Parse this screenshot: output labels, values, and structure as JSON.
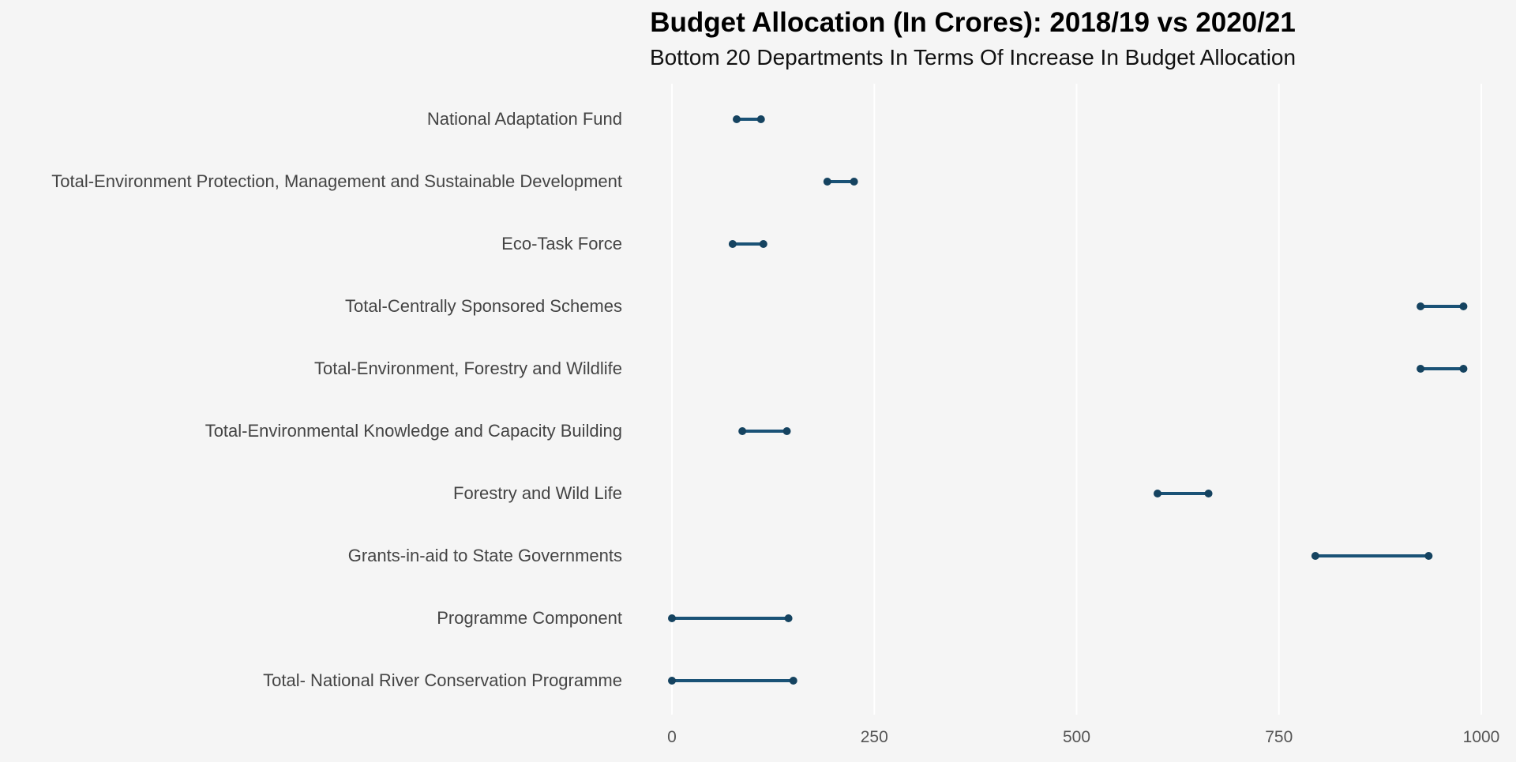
{
  "chart_data": {
    "type": "dumbbell",
    "title": "Budget Allocation (In Crores): 2018/19 vs 2020/21",
    "subtitle": "Bottom 20 Departments In Terms Of Increase In Budget Allocation",
    "xlabel": "",
    "ylabel": "",
    "xlim": [
      0,
      1000
    ],
    "xticks": [
      0,
      250,
      500,
      750,
      1000
    ],
    "xtick_labels": [
      "0",
      "250",
      "500",
      "750",
      "1000"
    ],
    "grid": "vertical",
    "series_names": [
      "2018/19",
      "2020/21"
    ],
    "categories": [
      "National Adaptation Fund",
      "Total-Environment Protection, Management and Sustainable Development",
      "Eco-Task Force",
      "Total-Centrally Sponsored Schemes",
      "Total-Environment, Forestry and Wildlife",
      "Total-Environmental Knowledge and Capacity Building",
      "Forestry and Wild Life",
      "Grants-in-aid to State Governments",
      "Programme Component",
      "Total- National River Conservation Programme"
    ],
    "start_values": [
      80,
      192,
      75,
      925,
      925,
      87,
      600,
      795,
      0,
      0
    ],
    "end_values": [
      110,
      225,
      113,
      978,
      978,
      142,
      663,
      935,
      144,
      150
    ],
    "colors": {
      "line": "#1a5276",
      "point": "#154360",
      "background": "#f5f5f5",
      "grid": "#ffffff"
    }
  }
}
